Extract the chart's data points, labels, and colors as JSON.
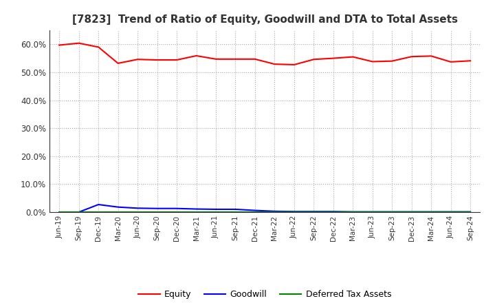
{
  "title": "[7823]  Trend of Ratio of Equity, Goodwill and DTA to Total Assets",
  "x_labels": [
    "Jun-19",
    "Sep-19",
    "Dec-19",
    "Mar-20",
    "Jun-20",
    "Sep-20",
    "Dec-20",
    "Mar-21",
    "Jun-21",
    "Sep-21",
    "Dec-21",
    "Mar-22",
    "Jun-22",
    "Sep-22",
    "Dec-22",
    "Mar-23",
    "Jun-23",
    "Sep-23",
    "Dec-23",
    "Mar-24",
    "Jun-24",
    "Sep-24"
  ],
  "equity": [
    0.597,
    0.604,
    0.59,
    0.532,
    0.546,
    0.544,
    0.544,
    0.559,
    0.547,
    0.547,
    0.547,
    0.529,
    0.527,
    0.546,
    0.55,
    0.555,
    0.538,
    0.54,
    0.556,
    0.558,
    0.537,
    0.541
  ],
  "goodwill": [
    0.0,
    0.0,
    0.027,
    0.018,
    0.014,
    0.013,
    0.013,
    0.011,
    0.01,
    0.01,
    0.006,
    0.003,
    0.002,
    0.002,
    0.002,
    0.001,
    0.001,
    0.001,
    0.001,
    0.001,
    0.001,
    0.001
  ],
  "dta": [
    0.001,
    0.001,
    0.001,
    0.001,
    0.001,
    0.001,
    0.001,
    0.001,
    0.001,
    0.001,
    0.001,
    0.001,
    0.001,
    0.001,
    0.001,
    0.001,
    0.001,
    0.001,
    0.001,
    0.001,
    0.001,
    0.001
  ],
  "equity_color": "#FF0000",
  "goodwill_color": "#0000FF",
  "dta_color": "#008000",
  "ylim": [
    0.0,
    0.65
  ],
  "yticks": [
    0.0,
    0.1,
    0.2,
    0.3,
    0.4,
    0.5,
    0.6
  ],
  "background_color": "#FFFFFF",
  "plot_bg_color": "#FFFFFF",
  "grid_color": "#AAAAAA",
  "title_fontsize": 11,
  "legend_labels": [
    "Equity",
    "Goodwill",
    "Deferred Tax Assets"
  ]
}
